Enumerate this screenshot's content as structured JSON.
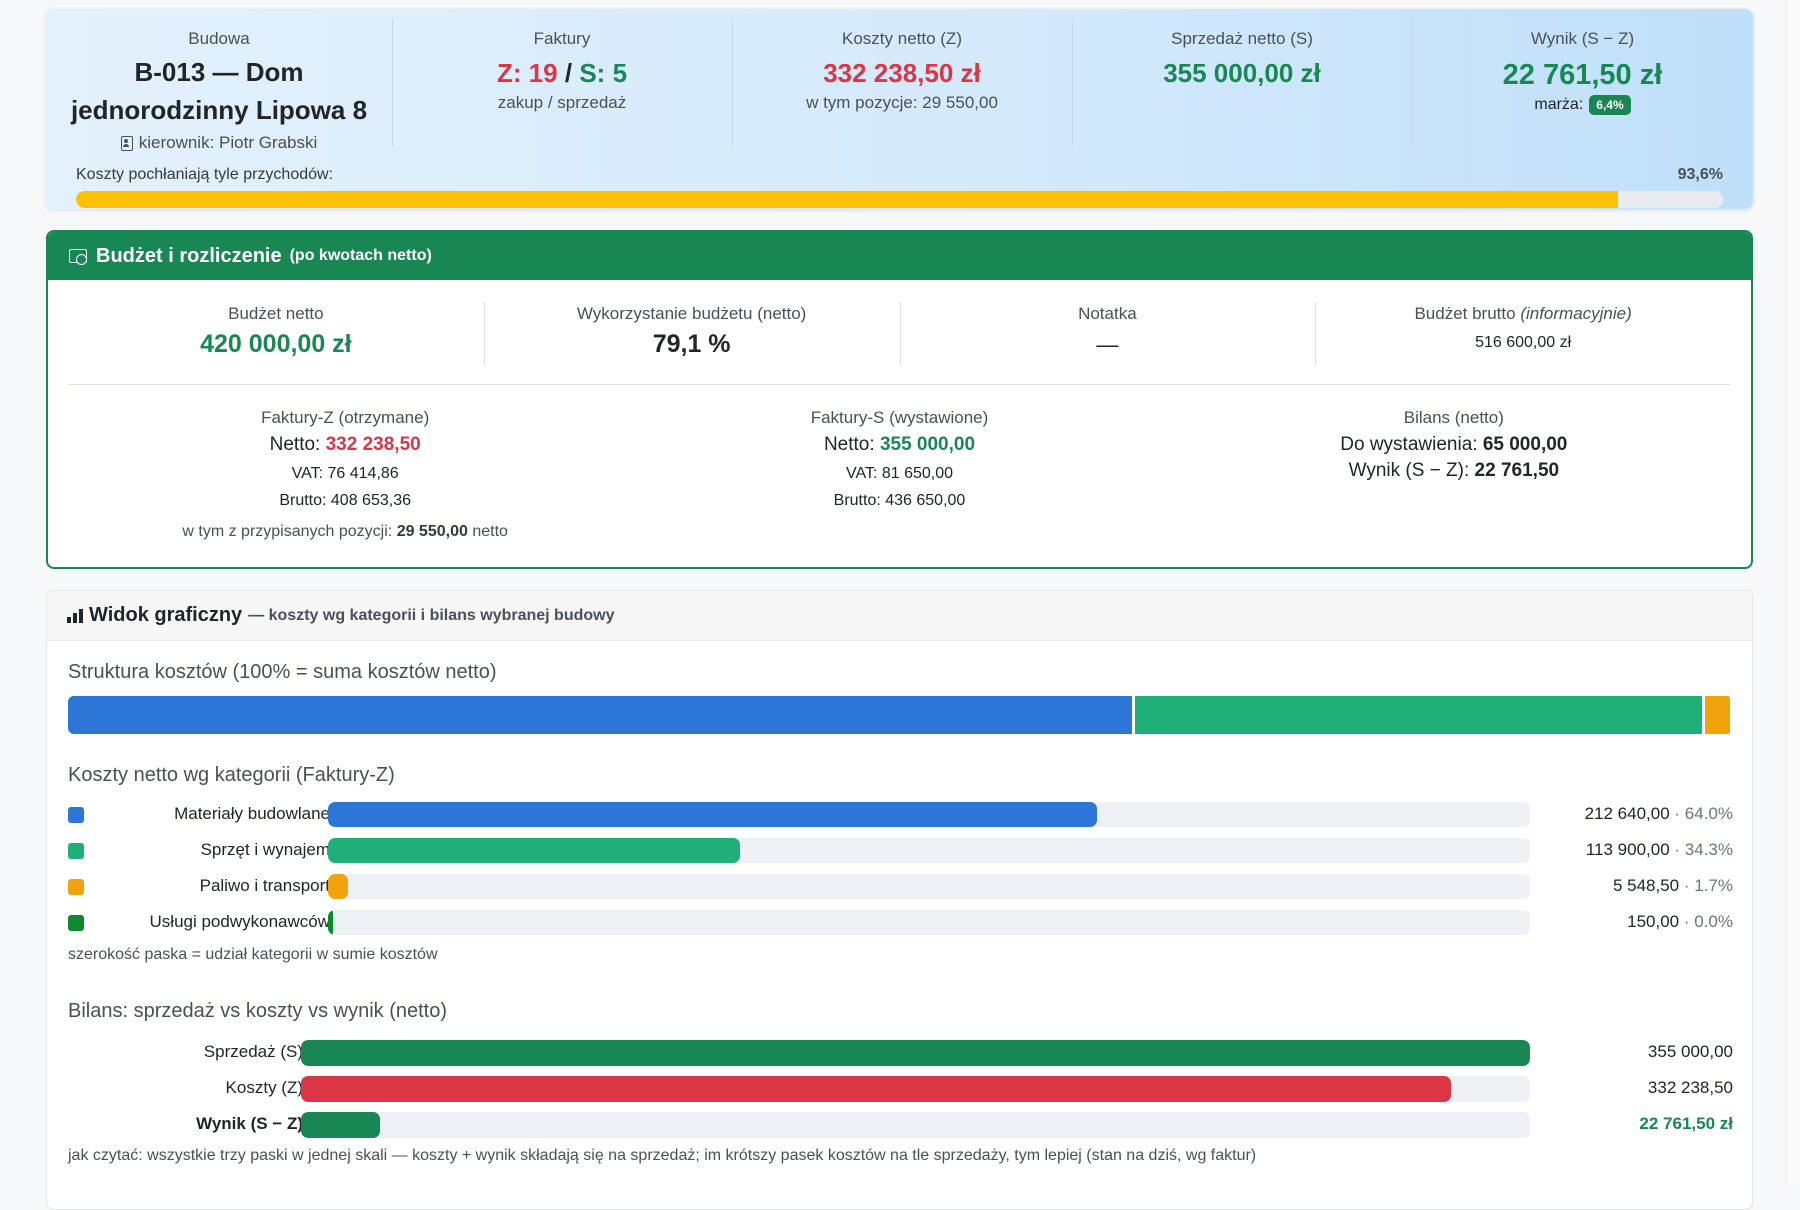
{
  "summary": {
    "project": {
      "label": "Budowa",
      "name_line1": "B-013 — Dom",
      "name_line2": "jednorodzinny Lipowa 8",
      "manager": "kierownik: Piotr Grabski",
      "manager_icon": "person-badge-icon"
    },
    "invoices": {
      "label": "Faktury",
      "z": "Z: 19",
      "sep": "/",
      "s": "S: 5",
      "sub": "zakup / sprzedaż"
    },
    "costs": {
      "label": "Koszty netto (Z)",
      "value": "332 238,50 zł",
      "sub": "w tym pozycje: 29 550,00"
    },
    "sales": {
      "label": "Sprzedaż netto (S)",
      "value": "355 000,00 zł"
    },
    "result": {
      "label": "Wynik (S − Z)",
      "value": "22 761,50 zł",
      "margin_label": "marża:",
      "margin_badge": "6,4%"
    },
    "absorption": {
      "label": "Koszty pochłaniają tyle przychodów:",
      "percent_text": "93,6%",
      "fraction": 0.936
    }
  },
  "budget": {
    "title": "Budżet i rozliczenie",
    "subtitle": "(po kwotach netto)",
    "icon": "cash-coin-icon",
    "net_budget": {
      "label": "Budżet netto",
      "value": "420 000,00 zł"
    },
    "usage": {
      "label": "Wykorzystanie budżetu (netto)",
      "value": "79,1 %"
    },
    "note": {
      "label": "Notatka",
      "value": "—"
    },
    "gross_budget": {
      "label": "Budżet brutto",
      "label_em": "(informacyjnie)",
      "value": "516 600,00 zł"
    },
    "invoices_z": {
      "label": "Faktury-Z (otrzymane)",
      "net_label": "Netto:",
      "net_value": "332 238,50",
      "vat": "VAT: 76 414,86",
      "gross": "Brutto: 408 653,36",
      "note_prefix": "w tym z przypisanych pozycji:",
      "note_value": "29 550,00",
      "note_suffix": "netto"
    },
    "invoices_s": {
      "label": "Faktury-S (wystawione)",
      "net_label": "Netto:",
      "net_value": "355 000,00",
      "vat": "VAT: 81 650,00",
      "gross": "Brutto: 436 650,00"
    },
    "balance": {
      "label": "Bilans (netto)",
      "to_issue_label": "Do wystawienia:",
      "to_issue_value": "65 000,00",
      "result_label": "Wynik (S − Z):",
      "result_value": "22 761,50"
    }
  },
  "graph": {
    "title": "Widok graficzny",
    "subtitle": "— koszty wg kategorii i bilans wybranej budowy",
    "icon": "bar-chart-icon",
    "structure_title": "Struktura kosztów (100% = suma kosztów netto)",
    "categories_title": "Koszty netto wg kategorii (Faktury-Z)",
    "categories_hint": "szerokość paska = udział kategorii w sumie kosztów",
    "balance_title": "Bilans: sprzedaż vs koszty vs wynik (netto)",
    "balance_hint": "jak czytać: wszystkie trzy paski w jednej skali — koszty + wynik składają się na sprzedaż; im krótszy pasek kosztów na tle sprzedaży, tym lepiej (stan na dziś, wg faktur)"
  },
  "chart_data": [
    {
      "type": "bar",
      "orientation": "horizontal",
      "categories": [
        "Materiały budowlane",
        "Sprzęt i wynajem",
        "Paliwo i transport",
        "Usługi podwykonawców"
      ],
      "values": [
        212640.0,
        113900.0,
        5548.5,
        150.0
      ],
      "value_labels": [
        "212 640,00",
        "113 900,00",
        "5 548,50",
        "150,00"
      ],
      "percent_labels": [
        "· 64.0%",
        "· 34.3%",
        "· 1.7%",
        "· 0.0%"
      ],
      "colors": [
        "#2b76d6",
        "#1fb07a",
        "#f0a30a",
        "#0b8a2e"
      ],
      "title": "Koszty netto wg kategorii (Faktury-Z)"
    },
    {
      "type": "bar",
      "orientation": "horizontal",
      "categories": [
        "Sprzedaż (S)",
        "Koszty (Z)",
        "Wynik (S − Z)"
      ],
      "values": [
        355000.0,
        332238.5,
        22761.5
      ],
      "value_labels": [
        "355 000,00",
        "332 238,50",
        "22 761,50 zł"
      ],
      "colors": [
        "#198754",
        "#dc3545",
        "#198754"
      ],
      "xlim": [
        0,
        355000
      ],
      "title": "Bilans: sprzedaż vs koszty vs wynik (netto)"
    }
  ]
}
